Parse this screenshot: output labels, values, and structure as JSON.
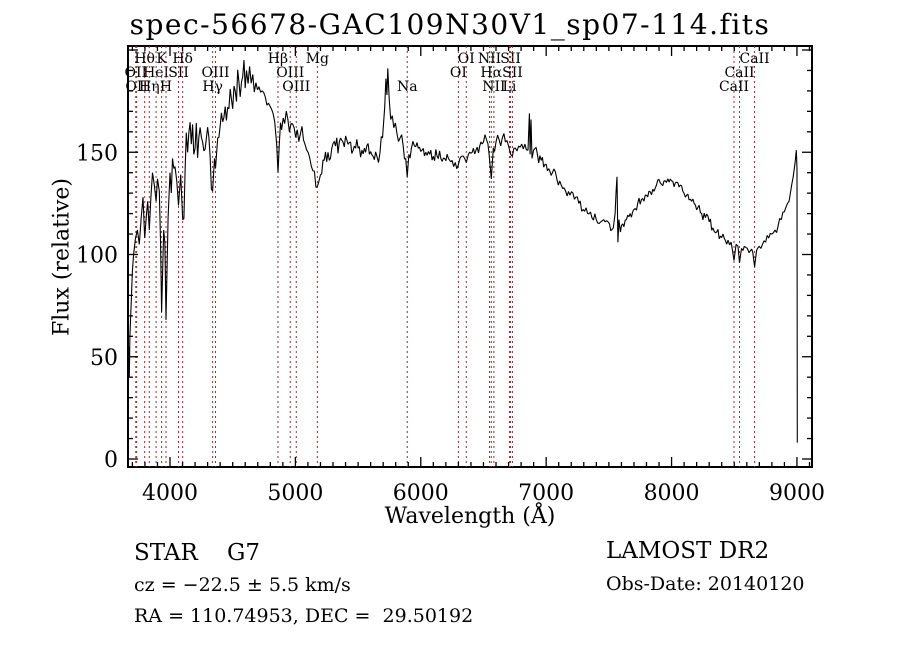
{
  "chart_data": {
    "type": "line",
    "title": "spec-56678-GAC109N30V1_sp07-114.fits",
    "xlabel": "Wavelength (Å)",
    "ylabel": "Flux (relative)",
    "xlim": [
      3665,
      9120
    ],
    "ylim": [
      -4,
      202
    ],
    "x_ticks": [
      4000,
      5000,
      6000,
      7000,
      8000,
      9000
    ],
    "y_ticks": [
      0,
      50,
      100,
      150
    ],
    "x_minor_step": 100,
    "y_minor_step": 10,
    "grid": false,
    "spectrum_color": "#000000",
    "line_marker_color": "#8b3232",
    "spectral_lines": [
      {
        "label": "OII",
        "wavelength": 3727,
        "row": 2
      },
      {
        "label": "OII",
        "wavelength": 3734,
        "row": 3
      },
      {
        "label": "Hθ",
        "wavelength": 3798,
        "row": 1
      },
      {
        "label": "Hη",
        "wavelength": 3835,
        "row": 3
      },
      {
        "label": "HeI",
        "wavelength": 3889,
        "row": 2
      },
      {
        "label": "K",
        "wavelength": 3933,
        "row": 1
      },
      {
        "label": "H",
        "wavelength": 3968,
        "row": 3
      },
      {
        "label": "SII",
        "wavelength": 4068,
        "row": 2
      },
      {
        "label": "Hδ",
        "wavelength": 4101,
        "row": 1
      },
      {
        "label": "Hγ",
        "wavelength": 4340,
        "row": 3
      },
      {
        "label": "OIII",
        "wavelength": 4363,
        "row": 2
      },
      {
        "label": "Hβ",
        "wavelength": 4861,
        "row": 1
      },
      {
        "label": "OIII",
        "wavelength": 4959,
        "row": 2
      },
      {
        "label": "OIII",
        "wavelength": 5007,
        "row": 3
      },
      {
        "label": "Mg",
        "wavelength": 5175,
        "row": 1
      },
      {
        "label": "Na",
        "wavelength": 5892,
        "row": 3
      },
      {
        "label": "OI",
        "wavelength": 6300,
        "row": 2
      },
      {
        "label": "OI",
        "wavelength": 6363,
        "row": 1
      },
      {
        "label": "NII",
        "wavelength": 6548,
        "row": 1
      },
      {
        "label": "Hα",
        "wavelength": 6562,
        "row": 2
      },
      {
        "label": "NII",
        "wavelength": 6583,
        "row": 3
      },
      {
        "label": "Li",
        "wavelength": 6707,
        "row": 3
      },
      {
        "label": "SII",
        "wavelength": 6716,
        "row": 1
      },
      {
        "label": "SII",
        "wavelength": 6731,
        "row": 2
      },
      {
        "label": "CaII",
        "wavelength": 8498,
        "row": 3
      },
      {
        "label": "CaII",
        "wavelength": 8542,
        "row": 2
      },
      {
        "label": "CaII",
        "wavelength": 8662,
        "row": 1
      }
    ],
    "envelope_points": [
      [
        3665,
        30
      ],
      [
        3670,
        55
      ],
      [
        3675,
        40
      ],
      [
        3680,
        60
      ],
      [
        3690,
        75
      ],
      [
        3700,
        92
      ],
      [
        3710,
        100
      ],
      [
        3725,
        108
      ],
      [
        3740,
        112
      ],
      [
        3755,
        105
      ],
      [
        3770,
        118
      ],
      [
        3785,
        128
      ],
      [
        3798,
        108
      ],
      [
        3810,
        118
      ],
      [
        3822,
        126
      ],
      [
        3835,
        112
      ],
      [
        3848,
        128
      ],
      [
        3860,
        140
      ],
      [
        3875,
        134
      ],
      [
        3889,
        126
      ],
      [
        3900,
        137
      ],
      [
        3915,
        131
      ],
      [
        3933,
        72
      ],
      [
        3950,
        112
      ],
      [
        3968,
        68
      ],
      [
        3985,
        118
      ],
      [
        4000,
        140
      ],
      [
        4020,
        147
      ],
      [
        4040,
        143
      ],
      [
        4068,
        124
      ],
      [
        4085,
        139
      ],
      [
        4101,
        117
      ],
      [
        4120,
        141
      ],
      [
        4140,
        150
      ],
      [
        4170,
        154
      ],
      [
        4200,
        152
      ],
      [
        4230,
        157
      ],
      [
        4260,
        155
      ],
      [
        4290,
        157
      ],
      [
        4320,
        148
      ],
      [
        4340,
        131
      ],
      [
        4355,
        147
      ],
      [
        4363,
        142
      ],
      [
        4380,
        157
      ],
      [
        4400,
        163
      ],
      [
        4430,
        167
      ],
      [
        4460,
        172
      ],
      [
        4490,
        176
      ],
      [
        4520,
        180
      ],
      [
        4550,
        184
      ],
      [
        4580,
        187
      ],
      [
        4610,
        190
      ],
      [
        4635,
        192
      ],
      [
        4660,
        188
      ],
      [
        4685,
        184
      ],
      [
        4710,
        182
      ],
      [
        4735,
        180
      ],
      [
        4760,
        177
      ],
      [
        4785,
        174
      ],
      [
        4810,
        171
      ],
      [
        4835,
        165
      ],
      [
        4852,
        153
      ],
      [
        4861,
        140
      ],
      [
        4872,
        154
      ],
      [
        4890,
        161
      ],
      [
        4915,
        164
      ],
      [
        4940,
        166
      ],
      [
        4965,
        164
      ],
      [
        4990,
        162
      ],
      [
        5015,
        161
      ],
      [
        5040,
        159
      ],
      [
        5065,
        156
      ],
      [
        5090,
        151
      ],
      [
        5115,
        147
      ],
      [
        5140,
        141
      ],
      [
        5175,
        133
      ],
      [
        5200,
        139
      ],
      [
        5230,
        146
      ],
      [
        5260,
        150
      ],
      [
        5290,
        152
      ],
      [
        5320,
        153
      ],
      [
        5350,
        155
      ],
      [
        5380,
        155
      ],
      [
        5410,
        156
      ],
      [
        5440,
        155
      ],
      [
        5470,
        153
      ],
      [
        5500,
        152
      ],
      [
        5530,
        151
      ],
      [
        5560,
        150
      ],
      [
        5590,
        149
      ],
      [
        5620,
        148
      ],
      [
        5650,
        148
      ],
      [
        5675,
        150
      ],
      [
        5695,
        157
      ],
      [
        5712,
        172
      ],
      [
        5722,
        186
      ],
      [
        5730,
        178
      ],
      [
        5737,
        191
      ],
      [
        5748,
        176
      ],
      [
        5760,
        166
      ],
      [
        5785,
        162
      ],
      [
        5810,
        159
      ],
      [
        5835,
        157
      ],
      [
        5860,
        153
      ],
      [
        5880,
        147
      ],
      [
        5892,
        138
      ],
      [
        5905,
        149
      ],
      [
        5925,
        152
      ],
      [
        5950,
        153
      ],
      [
        5980,
        152
      ],
      [
        6010,
        151
      ],
      [
        6040,
        150
      ],
      [
        6070,
        149
      ],
      [
        6100,
        148
      ],
      [
        6130,
        148
      ],
      [
        6160,
        147
      ],
      [
        6190,
        147
      ],
      [
        6220,
        147
      ],
      [
        6250,
        146
      ],
      [
        6275,
        145
      ],
      [
        6300,
        144
      ],
      [
        6325,
        148
      ],
      [
        6350,
        147
      ],
      [
        6363,
        145
      ],
      [
        6380,
        149
      ],
      [
        6410,
        150
      ],
      [
        6440,
        151
      ],
      [
        6470,
        153
      ],
      [
        6500,
        155
      ],
      [
        6525,
        156
      ],
      [
        6545,
        149
      ],
      [
        6562,
        137
      ],
      [
        6578,
        152
      ],
      [
        6600,
        155
      ],
      [
        6625,
        156
      ],
      [
        6650,
        157
      ],
      [
        6675,
        155
      ],
      [
        6700,
        153
      ],
      [
        6716,
        149
      ],
      [
        6731,
        148
      ],
      [
        6755,
        152
      ],
      [
        6780,
        153
      ],
      [
        6805,
        154
      ],
      [
        6830,
        154
      ],
      [
        6855,
        151
      ],
      [
        6866,
        169
      ],
      [
        6872,
        149
      ],
      [
        6879,
        166
      ],
      [
        6887,
        147
      ],
      [
        6900,
        151
      ],
      [
        6930,
        149
      ],
      [
        6960,
        146
      ],
      [
        6990,
        144
      ],
      [
        7020,
        142
      ],
      [
        7050,
        140
      ],
      [
        7085,
        137
      ],
      [
        7120,
        134
      ],
      [
        7155,
        131
      ],
      [
        7190,
        129
      ],
      [
        7225,
        127
      ],
      [
        7260,
        125
      ],
      [
        7295,
        122
      ],
      [
        7330,
        120
      ],
      [
        7365,
        118
      ],
      [
        7400,
        117
      ],
      [
        7435,
        116
      ],
      [
        7470,
        116
      ],
      [
        7505,
        115
      ],
      [
        7535,
        113
      ],
      [
        7550,
        120
      ],
      [
        7558,
        131
      ],
      [
        7565,
        138
      ],
      [
        7572,
        106
      ],
      [
        7580,
        117
      ],
      [
        7592,
        111
      ],
      [
        7610,
        115
      ],
      [
        7640,
        117
      ],
      [
        7670,
        120
      ],
      [
        7700,
        122
      ],
      [
        7730,
        125
      ],
      [
        7760,
        127
      ],
      [
        7790,
        129
      ],
      [
        7820,
        131
      ],
      [
        7850,
        132
      ],
      [
        7880,
        134
      ],
      [
        7910,
        135
      ],
      [
        7940,
        136
      ],
      [
        7970,
        137
      ],
      [
        8000,
        136
      ],
      [
        8030,
        135
      ],
      [
        8060,
        133
      ],
      [
        8090,
        131
      ],
      [
        8120,
        129
      ],
      [
        8150,
        127
      ],
      [
        8180,
        125
      ],
      [
        8210,
        123
      ],
      [
        8240,
        120
      ],
      [
        8270,
        118
      ],
      [
        8300,
        116
      ],
      [
        8330,
        113
      ],
      [
        8360,
        111
      ],
      [
        8390,
        109
      ],
      [
        8420,
        108
      ],
      [
        8450,
        107
      ],
      [
        8475,
        106
      ],
      [
        8498,
        97
      ],
      [
        8515,
        105
      ],
      [
        8530,
        104
      ],
      [
        8542,
        96
      ],
      [
        8558,
        103
      ],
      [
        8580,
        104
      ],
      [
        8605,
        103
      ],
      [
        8630,
        102
      ],
      [
        8648,
        101
      ],
      [
        8662,
        94
      ],
      [
        8678,
        102
      ],
      [
        8700,
        104
      ],
      [
        8725,
        105
      ],
      [
        8750,
        106
      ],
      [
        8775,
        108
      ],
      [
        8800,
        110
      ],
      [
        8825,
        112
      ],
      [
        8850,
        114
      ],
      [
        8875,
        117
      ],
      [
        8900,
        121
      ],
      [
        8925,
        125
      ],
      [
        8950,
        131
      ],
      [
        8970,
        138
      ],
      [
        8985,
        145
      ],
      [
        8995,
        151
      ],
      [
        9000,
        142
      ],
      [
        9003,
        8
      ]
    ],
    "noise_segments": [
      [
        3665,
        3702,
        45
      ],
      [
        3702,
        3772,
        36
      ],
      [
        3772,
        3930,
        26
      ],
      [
        3930,
        3995,
        22
      ],
      [
        3995,
        4150,
        15
      ],
      [
        4150,
        4345,
        14
      ],
      [
        4345,
        4420,
        10
      ],
      [
        4420,
        4900,
        8
      ],
      [
        4900,
        5160,
        6
      ],
      [
        5160,
        5700,
        5
      ],
      [
        5700,
        5900,
        4
      ],
      [
        5900,
        6540,
        3.5
      ],
      [
        6540,
        7000,
        3.5
      ],
      [
        7000,
        7545,
        3
      ],
      [
        7545,
        7600,
        4
      ],
      [
        7600,
        8490,
        2.5
      ],
      [
        8490,
        8700,
        2
      ],
      [
        8700,
        9005,
        2.5
      ]
    ],
    "noise_seed": 20140120,
    "sample_step": 12
  },
  "annotations": {
    "star_class": "STAR    G7",
    "cz": "cz = −22.5 ± 5.5 km/s",
    "radec": "RA = 110.74953, DEC =  29.50192",
    "survey": "LAMOST DR2",
    "obs_date": "Obs-Date: 20140120"
  }
}
